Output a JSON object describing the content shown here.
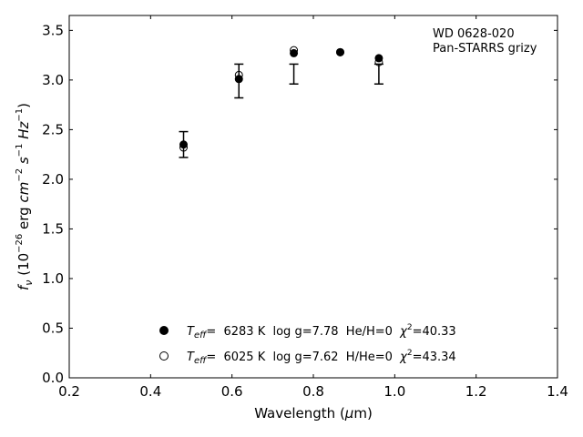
{
  "chart_data": {
    "type": "scatter",
    "xlabel": "Wavelength (μm)",
    "ylabel": "f_ν (10^-26 erg cm^-2 s^-1 Hz^-1)",
    "xlim": [
      0.2,
      1.4
    ],
    "ylim": [
      0.0,
      3.65
    ],
    "x_ticks": [
      "0.2",
      "0.4",
      "0.6",
      "0.8",
      "1.0",
      "1.2",
      "1.4"
    ],
    "y_ticks": [
      "0.0",
      "0.5",
      "1.0",
      "1.5",
      "2.0",
      "2.5",
      "3.0",
      "3.5"
    ],
    "annotation": [
      "WD 0628-020",
      "Pan-STARRS grizy"
    ],
    "legend_placement": "lower-center",
    "grid": false,
    "observed": {
      "x": [
        0.481,
        0.617,
        0.752,
        0.961
      ],
      "y": [
        2.35,
        2.99,
        3.06,
        3.06
      ],
      "yerr": [
        0.13,
        0.17,
        0.1,
        0.1
      ]
    },
    "series": [
      {
        "name": "Teff= 6283 K log g=7.78 He/H=0 χ2=40.33",
        "marker": "filled-circle",
        "x": [
          0.481,
          0.617,
          0.752,
          0.866,
          0.961
        ],
        "y": [
          2.35,
          3.01,
          3.27,
          3.28,
          3.22
        ]
      },
      {
        "name": "Teff= 6025 K log g=7.62 H/He=0 χ2=43.34",
        "marker": "open-circle",
        "x": [
          0.481,
          0.617,
          0.752,
          0.866,
          0.961
        ],
        "y": [
          2.32,
          3.05,
          3.3,
          3.28,
          3.18
        ]
      }
    ]
  },
  "legend": [
    {
      "name_pre": "T",
      "name_sub": "eff",
      "rest": "=  6283 K  log g=7.78  He/H=0  ",
      "chi": "χ",
      "chi_sup": "2",
      "chi_val": "=40.33"
    },
    {
      "name_pre": "T",
      "name_sub": "eff",
      "rest": "=  6025 K  log g=7.62  H/He=0  ",
      "chi": "χ",
      "chi_sup": "2",
      "chi_val": "=43.34"
    }
  ],
  "xlabel_parts": {
    "pre": "Wavelength (",
    "mu": "μ",
    "post": "m)"
  }
}
